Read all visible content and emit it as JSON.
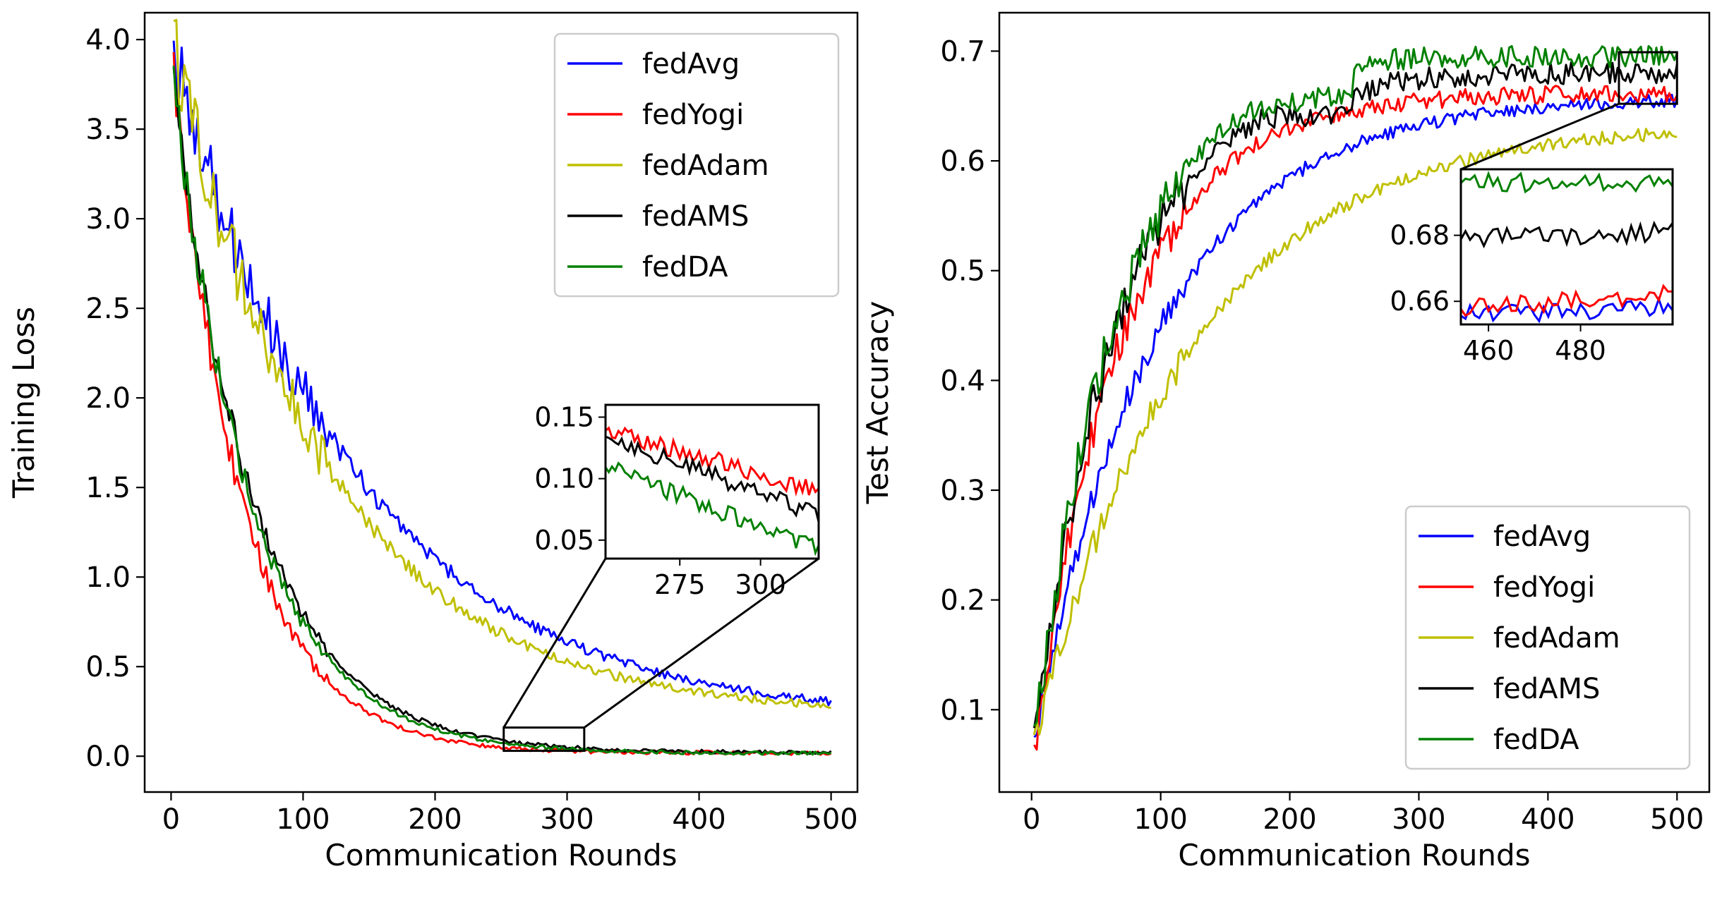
{
  "series_styles": [
    {
      "name": "fedAvg",
      "color": "#0000ff"
    },
    {
      "name": "fedYogi",
      "color": "#ff0000"
    },
    {
      "name": "fedAdam",
      "color": "#bfbf00"
    },
    {
      "name": "fedAMS",
      "color": "#000000"
    },
    {
      "name": "fedDA",
      "color": "#008000"
    }
  ],
  "chart_data": [
    {
      "type": "line",
      "title": "",
      "xlabel": "Communication Rounds",
      "ylabel": "Training Loss",
      "xlim": [
        -20,
        520
      ],
      "ylim": [
        -0.2,
        4.15
      ],
      "xticks": [
        0,
        100,
        200,
        300,
        400,
        500
      ],
      "xtick_labels": [
        "0",
        "100",
        "200",
        "300",
        "400",
        "500"
      ],
      "yticks": [
        0.0,
        0.5,
        1.0,
        1.5,
        2.0,
        2.5,
        3.0,
        3.5,
        4.0
      ],
      "ytick_labels": [
        "0.0",
        "0.5",
        "1.0",
        "1.5",
        "2.0",
        "2.5",
        "3.0",
        "3.5",
        "4.0"
      ],
      "legend": {
        "placement": "top-right",
        "entries": [
          "fedAvg",
          "fedYogi",
          "fedAdam",
          "fedAMS",
          "fedDA"
        ]
      },
      "x_range": [
        2,
        500
      ],
      "series": [
        {
          "name": "fedAvg",
          "start": 3.9,
          "end": 0.2,
          "tau": 140,
          "noise": 0.025
        },
        {
          "name": "fedYogi",
          "start": 3.85,
          "end": 0.018,
          "tau": 52,
          "noise": 0.018
        },
        {
          "name": "fedAdam",
          "start": 3.97,
          "end": 0.23,
          "tau": 118,
          "noise": 0.025
        },
        {
          "name": "fedAMS",
          "start": 3.75,
          "end": 0.02,
          "tau": 62,
          "noise": 0.016
        },
        {
          "name": "fedDA",
          "start": 3.75,
          "end": 0.015,
          "tau": 60,
          "noise": 0.016
        }
      ],
      "inset": {
        "xlim": [
          252,
          318
        ],
        "ylim": [
          0.035,
          0.16
        ],
        "xticks": [
          275,
          300
        ],
        "xtick_labels": [
          "275",
          "300"
        ],
        "yticks": [
          0.05,
          0.1,
          0.15
        ],
        "ytick_labels": [
          "0.05",
          "0.10",
          "0.15"
        ],
        "source_box": {
          "x": [
            252,
            313
          ],
          "y": [
            0.03,
            0.16
          ]
        },
        "series": [
          {
            "name": "fedYogi",
            "start": 0.14,
            "end": 0.09
          },
          {
            "name": "fedAMS",
            "start": 0.135,
            "end": 0.07
          },
          {
            "name": "fedDA",
            "start": 0.11,
            "end": 0.043
          }
        ]
      }
    },
    {
      "type": "line",
      "title": "",
      "xlabel": "Communication Rounds",
      "ylabel": "Test Accuracy",
      "xlim": [
        -25,
        525
      ],
      "ylim": [
        0.025,
        0.735
      ],
      "xticks": [
        0,
        100,
        200,
        300,
        400,
        500
      ],
      "xtick_labels": [
        "0",
        "100",
        "200",
        "300",
        "400",
        "500"
      ],
      "yticks": [
        0.1,
        0.2,
        0.3,
        0.4,
        0.5,
        0.6,
        0.7
      ],
      "ytick_labels": [
        "0.1",
        "0.2",
        "0.3",
        "0.4",
        "0.5",
        "0.6",
        "0.7"
      ],
      "legend": {
        "placement": "bottom-right",
        "entries": [
          "fedAvg",
          "fedYogi",
          "fedAdam",
          "fedAMS",
          "fedDA"
        ]
      },
      "x_range": [
        2,
        500
      ],
      "series": [
        {
          "name": "fedAvg",
          "start": 0.07,
          "end": 0.658,
          "tau": 95,
          "noise": 0.006
        },
        {
          "name": "fedYogi",
          "start": 0.06,
          "end": 0.662,
          "tau": 68,
          "noise": 0.008
        },
        {
          "name": "fedAdam",
          "start": 0.07,
          "end": 0.635,
          "tau": 120,
          "noise": 0.006
        },
        {
          "name": "fedAMS",
          "start": 0.07,
          "end": 0.68,
          "tau": 66,
          "noise": 0.01
        },
        {
          "name": "fedDA",
          "start": 0.07,
          "end": 0.696,
          "tau": 66,
          "noise": 0.01
        }
      ],
      "inset": {
        "xlim": [
          454,
          500
        ],
        "ylim": [
          0.653,
          0.7
        ],
        "xticks": [
          460,
          480
        ],
        "xtick_labels": [
          "460",
          "480"
        ],
        "yticks": [
          0.66,
          0.68
        ],
        "ytick_labels": [
          "0.66",
          "0.68"
        ],
        "source_box": {
          "x": [
            455,
            500
          ],
          "y": [
            0.652,
            0.699
          ]
        },
        "series": [
          {
            "name": "fedAvg",
            "start": 0.656,
            "end": 0.658
          },
          {
            "name": "fedYogi",
            "start": 0.658,
            "end": 0.662
          },
          {
            "name": "fedAMS",
            "start": 0.679,
            "end": 0.681
          },
          {
            "name": "fedDA",
            "start": 0.696,
            "end": 0.696
          }
        ]
      }
    }
  ]
}
